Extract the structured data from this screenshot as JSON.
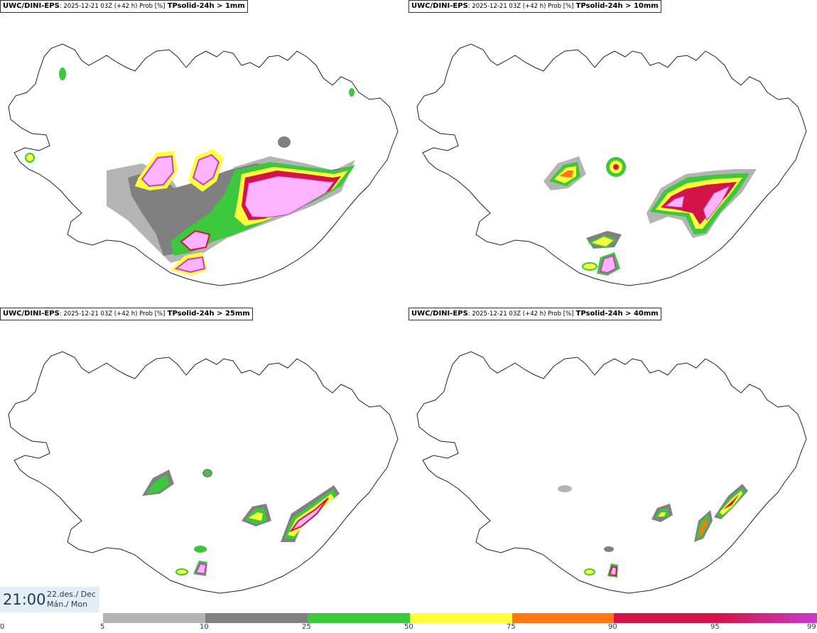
{
  "panels": [
    {
      "model": "UWC/DINI-EPS",
      "meta": ": 2025-12-21 03Z (+42 h) Prob [%]",
      "variable": "TPsolid-24h > 1mm"
    },
    {
      "model": "UWC/DINI-EPS",
      "meta": ": 2025-12-21 03Z (+42 h) Prob [%]",
      "variable": "TPsolid-24h > 10mm"
    },
    {
      "model": "UWC/DINI-EPS",
      "meta": ": 2025-12-21 03Z (+42 h) Prob [%]",
      "variable": "TPsolid-24h > 25mm"
    },
    {
      "model": "UWC/DINI-EPS",
      "meta": ": 2025-12-21 03Z (+42 h) Prob [%]",
      "variable": "TPsolid-24h > 40mm"
    }
  ],
  "valid_time": {
    "time": "21:00",
    "date_line1": "22.des./ Dec",
    "date_line2": "Mán./ Mon"
  },
  "colorbar": {
    "ticks": [
      "0",
      "5",
      "10",
      "25",
      "50",
      "75",
      "90",
      "95",
      "99"
    ],
    "colors": [
      "#b4b4b4",
      "#808080",
      "#3cc83c",
      "#ffff3c",
      "#ff7814",
      "#d21446",
      "#c83cc8",
      "#ffb4ff"
    ]
  }
}
